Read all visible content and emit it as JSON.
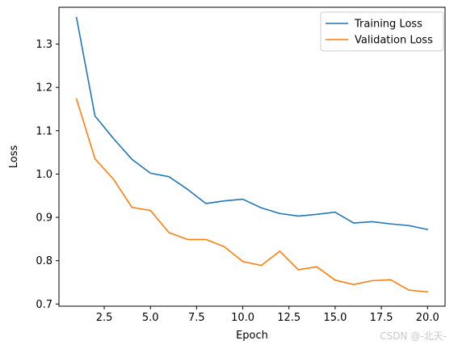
{
  "chart_data": {
    "type": "line",
    "title": "",
    "xlabel": "Epoch",
    "ylabel": "Loss",
    "xlim": [
      0.05,
      20.95
    ],
    "ylim": [
      0.695,
      1.385
    ],
    "xticks": [
      2.5,
      5.0,
      7.5,
      10.0,
      12.5,
      15.0,
      17.5,
      20.0
    ],
    "xtick_labels": [
      "2.5",
      "5.0",
      "7.5",
      "10.0",
      "12.5",
      "15.0",
      "17.5",
      "20.0"
    ],
    "yticks": [
      0.7,
      0.8,
      0.9,
      1.0,
      1.1,
      1.2,
      1.3
    ],
    "ytick_labels": [
      "0.7",
      "0.8",
      "0.9",
      "1.0",
      "1.1",
      "1.2",
      "1.3"
    ],
    "grid": false,
    "legend_position": "top-right",
    "x": [
      1,
      2,
      3,
      4,
      5,
      6,
      7,
      8,
      9,
      10,
      11,
      12,
      13,
      14,
      15,
      16,
      17,
      18,
      19,
      20
    ],
    "series": [
      {
        "name": "Training Loss",
        "color": "#1f77b4",
        "values": [
          1.361,
          1.134,
          1.082,
          1.034,
          1.002,
          0.994,
          0.965,
          0.932,
          0.938,
          0.942,
          0.922,
          0.909,
          0.903,
          0.907,
          0.912,
          0.887,
          0.89,
          0.885,
          0.881,
          0.872
        ]
      },
      {
        "name": "Validation Loss",
        "color": "#ff7f0e",
        "values": [
          1.173,
          1.035,
          0.988,
          0.923,
          0.916,
          0.865,
          0.849,
          0.849,
          0.832,
          0.798,
          0.789,
          0.822,
          0.779,
          0.786,
          0.755,
          0.745,
          0.754,
          0.756,
          0.732,
          0.728
        ]
      }
    ]
  },
  "watermark": {
    "text": "CSDN @-北天-"
  }
}
